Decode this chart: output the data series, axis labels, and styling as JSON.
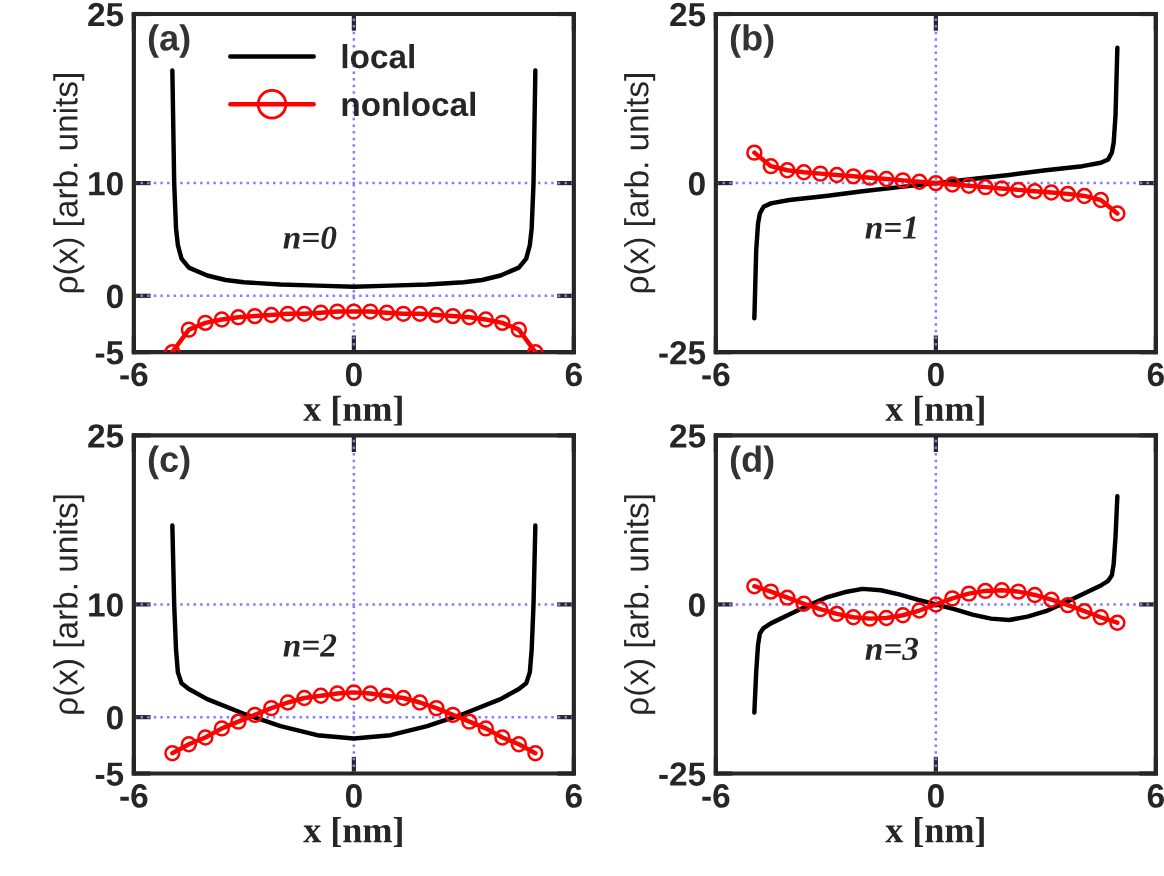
{
  "chart_data": [
    {
      "type": "line",
      "xlabel": "x [nm]",
      "ylabel": "ρ(x) [arb. units]",
      "annotations": [
        "(a)",
        "n=0"
      ],
      "legend": "top",
      "xlim": [
        -6,
        6
      ],
      "xticks": [
        -6,
        0,
        6
      ],
      "ylim": [
        -5,
        25
      ],
      "yticks": [
        -5,
        0,
        10,
        25
      ],
      "ref_lines": [
        {
          "axis": "x",
          "value": 0,
          "color": "#7f7fff",
          "line_style": "dotted"
        },
        {
          "axis": "y",
          "value": 0,
          "color": "#7f7fff",
          "line_style": "dotted"
        },
        {
          "axis": "y",
          "value": 10,
          "color": "#7f7fff",
          "line_style": "dotted"
        }
      ],
      "series": [
        {
          "name": "local",
          "color": "#000000",
          "marker": "none",
          "x": [
            -4.95,
            -4.9,
            -4.85,
            -4.8,
            -4.7,
            -4.5,
            -4,
            -3.5,
            -3,
            -2,
            -1,
            0,
            1,
            2,
            3,
            3.5,
            4,
            4.5,
            4.7,
            4.8,
            4.85,
            4.9,
            4.95
          ],
          "values": [
            20,
            10,
            6,
            4.5,
            3.3,
            2.5,
            1.8,
            1.4,
            1.2,
            1.0,
            0.9,
            0.8,
            0.9,
            1.0,
            1.2,
            1.4,
            1.8,
            2.5,
            3.3,
            4.5,
            6,
            10,
            20
          ]
        },
        {
          "name": "nonlocal",
          "color": "#ff0000",
          "marker": "circle",
          "x": [
            -4.95,
            -4.5,
            -4.05,
            -3.6,
            -3.15,
            -2.7,
            -2.25,
            -1.8,
            -1.35,
            -0.9,
            -0.45,
            0,
            0.45,
            0.9,
            1.35,
            1.8,
            2.25,
            2.7,
            3.15,
            3.6,
            4.05,
            4.5,
            4.95
          ],
          "values": [
            -5,
            -3,
            -2.4,
            -2.1,
            -1.9,
            -1.8,
            -1.7,
            -1.6,
            -1.6,
            -1.5,
            -1.4,
            -1.4,
            -1.4,
            -1.5,
            -1.6,
            -1.6,
            -1.7,
            -1.8,
            -1.9,
            -2.1,
            -2.4,
            -3,
            -5
          ]
        }
      ]
    },
    {
      "type": "line",
      "xlabel": "x [nm]",
      "ylabel": "ρ(x) [arb. units]",
      "annotations": [
        "(b)",
        "n=1"
      ],
      "xlim": [
        -6,
        6
      ],
      "xticks": [
        -6,
        0,
        6
      ],
      "ylim": [
        -25,
        25
      ],
      "yticks": [
        -25,
        0,
        25
      ],
      "ref_lines": [
        {
          "axis": "x",
          "value": 0,
          "color": "#7f7fff",
          "line_style": "dotted"
        },
        {
          "axis": "y",
          "value": 0,
          "color": "#7f7fff",
          "line_style": "dotted"
        }
      ],
      "series": [
        {
          "color": "#000000",
          "marker": "none",
          "x": [
            -4.95,
            -4.9,
            -4.85,
            -4.8,
            -4.7,
            -4.5,
            -4,
            -3.5,
            -3,
            -2,
            -1,
            0,
            1,
            2,
            3,
            3.5,
            4,
            4.5,
            4.7,
            4.8,
            4.85,
            4.9,
            4.95
          ],
          "values": [
            -20,
            -10,
            -6,
            -4.5,
            -3.5,
            -3,
            -2.5,
            -2.2,
            -1.9,
            -1.2,
            -0.6,
            0,
            0.6,
            1.2,
            1.9,
            2.2,
            2.5,
            3,
            3.5,
            4.5,
            6,
            10,
            20
          ]
        },
        {
          "color": "#ff0000",
          "marker": "circle",
          "x": [
            -4.95,
            -4.5,
            -4.05,
            -3.6,
            -3.15,
            -2.7,
            -2.25,
            -1.8,
            -1.35,
            -0.9,
            -0.45,
            0,
            0.45,
            0.9,
            1.35,
            1.8,
            2.25,
            2.7,
            3.15,
            3.6,
            4.05,
            4.5,
            4.95
          ],
          "values": [
            4.5,
            2.5,
            1.9,
            1.6,
            1.4,
            1.2,
            1.0,
            0.8,
            0.6,
            0.4,
            0.2,
            0,
            -0.2,
            -0.4,
            -0.6,
            -0.8,
            -1.0,
            -1.2,
            -1.4,
            -1.6,
            -1.9,
            -2.5,
            -4.5
          ]
        }
      ]
    },
    {
      "type": "line",
      "xlabel": "x [nm]",
      "ylabel": "ρ(x) [arb. units]",
      "annotations": [
        "(c)",
        "n=2"
      ],
      "xlim": [
        -6,
        6
      ],
      "xticks": [
        -6,
        0,
        6
      ],
      "ylim": [
        -5,
        25
      ],
      "yticks": [
        -5,
        0,
        10,
        25
      ],
      "ref_lines": [
        {
          "axis": "x",
          "value": 0,
          "color": "#7f7fff",
          "line_style": "dotted"
        },
        {
          "axis": "y",
          "value": 0,
          "color": "#7f7fff",
          "line_style": "dotted"
        },
        {
          "axis": "y",
          "value": 10,
          "color": "#7f7fff",
          "line_style": "dotted"
        }
      ],
      "series": [
        {
          "color": "#000000",
          "marker": "none",
          "x": [
            -4.95,
            -4.9,
            -4.85,
            -4.8,
            -4.7,
            -4.5,
            -4,
            -3,
            -2,
            -1,
            0,
            1,
            2,
            3,
            4,
            4.5,
            4.7,
            4.8,
            4.85,
            4.9,
            4.95
          ],
          "values": [
            17,
            10,
            6,
            4,
            3,
            2.5,
            1.6,
            0.3,
            -0.8,
            -1.6,
            -1.9,
            -1.6,
            -0.8,
            0.3,
            1.6,
            2.5,
            3,
            4,
            6,
            10,
            17
          ]
        },
        {
          "color": "#ff0000",
          "marker": "circle",
          "x": [
            -4.95,
            -4.5,
            -4.05,
            -3.6,
            -3.15,
            -2.7,
            -2.25,
            -1.8,
            -1.35,
            -0.9,
            -0.45,
            0,
            0.45,
            0.9,
            1.35,
            1.8,
            2.25,
            2.7,
            3.15,
            3.6,
            4.05,
            4.5,
            4.95
          ],
          "values": [
            -3.2,
            -2.4,
            -1.8,
            -1.0,
            -0.4,
            0.2,
            0.8,
            1.3,
            1.7,
            1.9,
            2.1,
            2.2,
            2.1,
            1.9,
            1.7,
            1.3,
            0.8,
            0.2,
            -0.4,
            -1.0,
            -1.8,
            -2.4,
            -3.2
          ]
        }
      ]
    },
    {
      "type": "line",
      "xlabel": "x [nm]",
      "ylabel": "ρ(x) [arb. units]",
      "annotations": [
        "(d)",
        "n=3"
      ],
      "xlim": [
        -6,
        6
      ],
      "xticks": [
        -6,
        0,
        6
      ],
      "ylim": [
        -25,
        25
      ],
      "yticks": [
        -25,
        0,
        25
      ],
      "ref_lines": [
        {
          "axis": "x",
          "value": 0,
          "color": "#7f7fff",
          "line_style": "dotted"
        },
        {
          "axis": "y",
          "value": 0,
          "color": "#7f7fff",
          "line_style": "dotted"
        }
      ],
      "series": [
        {
          "color": "#000000",
          "marker": "none",
          "x": [
            -4.95,
            -4.9,
            -4.85,
            -4.8,
            -4.7,
            -4.5,
            -4,
            -3.5,
            -3,
            -2.5,
            -2,
            -1.5,
            -1,
            -0.5,
            0,
            0.5,
            1,
            1.5,
            2,
            2.5,
            3,
            3.5,
            4,
            4.5,
            4.7,
            4.8,
            4.85,
            4.9,
            4.95
          ],
          "values": [
            -16,
            -10,
            -6,
            -4.3,
            -3.5,
            -2.8,
            -1.5,
            -0.2,
            1.0,
            1.8,
            2.3,
            2.1,
            1.5,
            0.7,
            0,
            -0.7,
            -1.5,
            -2.1,
            -2.3,
            -1.8,
            -1.0,
            0.2,
            1.5,
            2.8,
            3.5,
            4.3,
            6,
            10,
            16
          ]
        },
        {
          "color": "#ff0000",
          "marker": "circle",
          "x": [
            -4.95,
            -4.5,
            -4.05,
            -3.6,
            -3.15,
            -2.7,
            -2.25,
            -1.8,
            -1.35,
            -0.9,
            -0.45,
            0,
            0.45,
            0.9,
            1.35,
            1.8,
            2.25,
            2.7,
            3.15,
            3.6,
            4.05,
            4.5,
            4.95
          ],
          "values": [
            2.7,
            1.9,
            1.0,
            0.1,
            -0.7,
            -1.4,
            -1.9,
            -2.1,
            -2.0,
            -1.6,
            -0.9,
            0,
            0.9,
            1.6,
            2.0,
            2.1,
            1.9,
            1.4,
            0.7,
            -0.1,
            -1.0,
            -1.9,
            -2.7
          ]
        }
      ]
    }
  ]
}
